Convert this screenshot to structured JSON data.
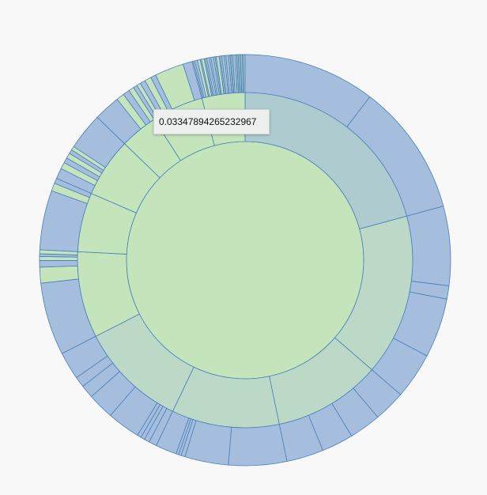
{
  "tooltip": {
    "text": "0.03347894265232967"
  },
  "chart_data": {
    "type": "sunburst",
    "title": "",
    "stroke_color": "#4a7fb8",
    "ring_colors": [
      "#c4e4bc",
      "#bcd9c8",
      "#a6bedd"
    ],
    "leaf_color": "#a6bedd",
    "highlight_color": "#c4e4bc",
    "root": {
      "value": 1,
      "children": [
        {
          "value": 0.2,
          "color": "#aecbcf",
          "children": [
            {
              "value": 0.1
            },
            {
              "value": 0.1
            }
          ]
        },
        {
          "value": 0.15,
          "children": [
            {
              "value": 0.06
            },
            {
              "value": 0.01
            },
            {
              "value": 0.045
            },
            {
              "value": 0.035
            }
          ]
        },
        {
          "value": 0.1,
          "children": [
            {
              "value": 0.024
            },
            {
              "value": 0.024
            },
            {
              "value": 0.024
            },
            {
              "value": 0.028
            }
          ]
        },
        {
          "value": 0.1,
          "children": [
            {
              "value": 0.044
            },
            {
              "value": 0.033
            },
            {
              "value": 0.003
            },
            {
              "value": 0.002
            },
            {
              "value": 0.002
            },
            {
              "value": 0.016
            }
          ]
        },
        {
          "value": 0.1,
          "children": [
            {
              "value": 0.006
            },
            {
              "value": 0.004
            },
            {
              "value": 0.003
            },
            {
              "value": 0.003
            },
            {
              "value": 0.025
            },
            {
              "value": 0.02
            },
            {
              "value": 0.01
            },
            {
              "value": 0.008
            },
            {
              "value": 0.021
            }
          ]
        },
        {
          "value": 0.08,
          "color": "#c4e4bc",
          "children": [
            {
              "value": 0.055
            },
            {
              "value": 0.012
            },
            {
              "value": 0.005
            },
            {
              "value": 0.003
            },
            {
              "value": 0.002
            },
            {
              "value": 0.003
            }
          ]
        },
        {
          "value": 0.055,
          "color": "#c4e4bc",
          "children": [
            {
              "value": 0.045
            },
            {
              "value": 0.006
            },
            {
              "value": 0.004
            }
          ]
        },
        {
          "value": 0.055,
          "color": "#c4e4bc",
          "children": [
            {
              "value": 0.008
            },
            {
              "value": 0.005
            },
            {
              "value": 0.004
            },
            {
              "value": 0.004
            },
            {
              "value": 0.003
            },
            {
              "value": 0.003
            },
            {
              "value": 0.028
            }
          ]
        },
        {
          "value": 0.035,
          "color": "#c4e4bc",
          "children": [
            {
              "value": 0.02
            },
            {
              "value": 0.006
            },
            {
              "value": 0.005
            },
            {
              "value": 0.004
            }
          ]
        },
        {
          "value": 0.048,
          "color": "#c4e4bc",
          "children": [
            {
              "value": 0.003
            },
            {
              "value": 0.003
            },
            {
              "value": 0.004
            },
            {
              "value": 0.005
            },
            {
              "value": 0.004
            },
            {
              "value": 0.022
            },
            {
              "value": 0.007
            }
          ]
        },
        {
          "value": 0.04,
          "color": "#c4e4bc",
          "children": [
            {
              "value": 0.001
            },
            {
              "value": 0.001
            },
            {
              "value": 0.002
            },
            {
              "value": 0.002
            },
            {
              "value": 0.001
            },
            {
              "value": 0.002
            },
            {
              "value": 0.001
            },
            {
              "value": 0.001
            },
            {
              "value": 0.002
            },
            {
              "value": 0.001
            },
            {
              "value": 0.002
            },
            {
              "value": 0.001
            },
            {
              "value": 0.001
            },
            {
              "value": 0.002
            },
            {
              "value": 0.001
            },
            {
              "value": 0.001
            },
            {
              "value": 0.002
            },
            {
              "value": 0.001
            },
            {
              "value": 0.002
            },
            {
              "value": 0.001
            },
            {
              "value": 0.001
            },
            {
              "value": 0.001
            },
            {
              "value": 0.002
            },
            {
              "value": 0.001
            },
            {
              "value": 0.001
            },
            {
              "value": 0.001
            },
            {
              "value": 0.001
            },
            {
              "value": 0.001
            },
            {
              "value": 0.001
            },
            {
              "value": 0.001
            }
          ]
        }
      ]
    }
  }
}
